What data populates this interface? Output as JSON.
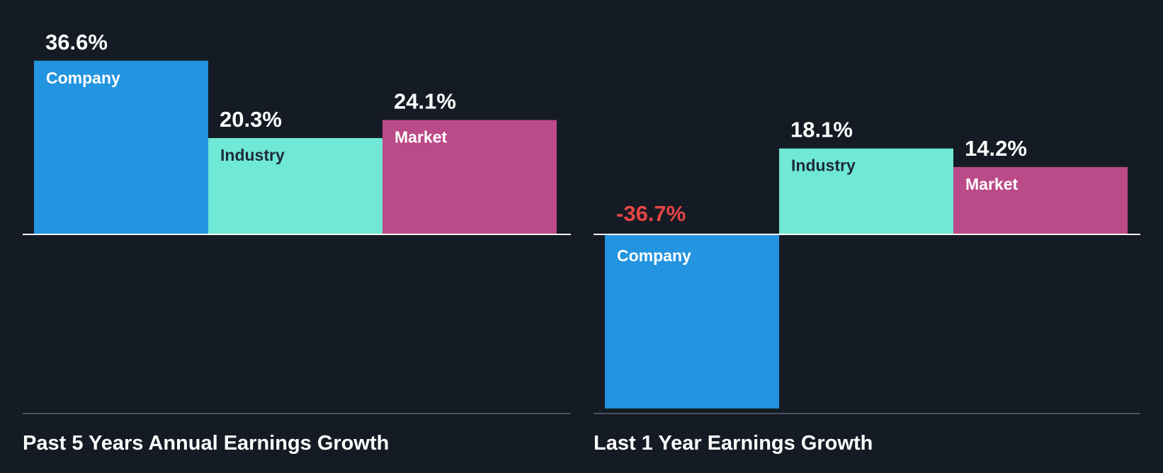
{
  "chart_data": [
    {
      "type": "bar",
      "title": "Past 5 Years Annual Earnings Growth",
      "categories": [
        "Company",
        "Industry",
        "Market"
      ],
      "values": [
        36.6,
        20.3,
        24.1
      ],
      "value_labels": [
        "36.6%",
        "20.3%",
        "24.1%"
      ],
      "colors": [
        "#2394e0",
        "#6fe8d6",
        "#bb4a88"
      ],
      "label_colors": [
        "#ffffff",
        "#1e2a36",
        "#ffffff"
      ],
      "negative_color": "#e64545",
      "ylim": [
        -37,
        37
      ]
    },
    {
      "type": "bar",
      "title": "Last 1 Year Earnings Growth",
      "categories": [
        "Company",
        "Industry",
        "Market"
      ],
      "values": [
        -36.7,
        18.1,
        14.2
      ],
      "value_labels": [
        "-36.7%",
        "18.1%",
        "14.2%"
      ],
      "colors": [
        "#2394e0",
        "#6fe8d6",
        "#bb4a88"
      ],
      "label_colors": [
        "#ffffff",
        "#1e2a36",
        "#ffffff"
      ],
      "negative_color": "#e64545",
      "ylim": [
        -37,
        37
      ]
    }
  ]
}
